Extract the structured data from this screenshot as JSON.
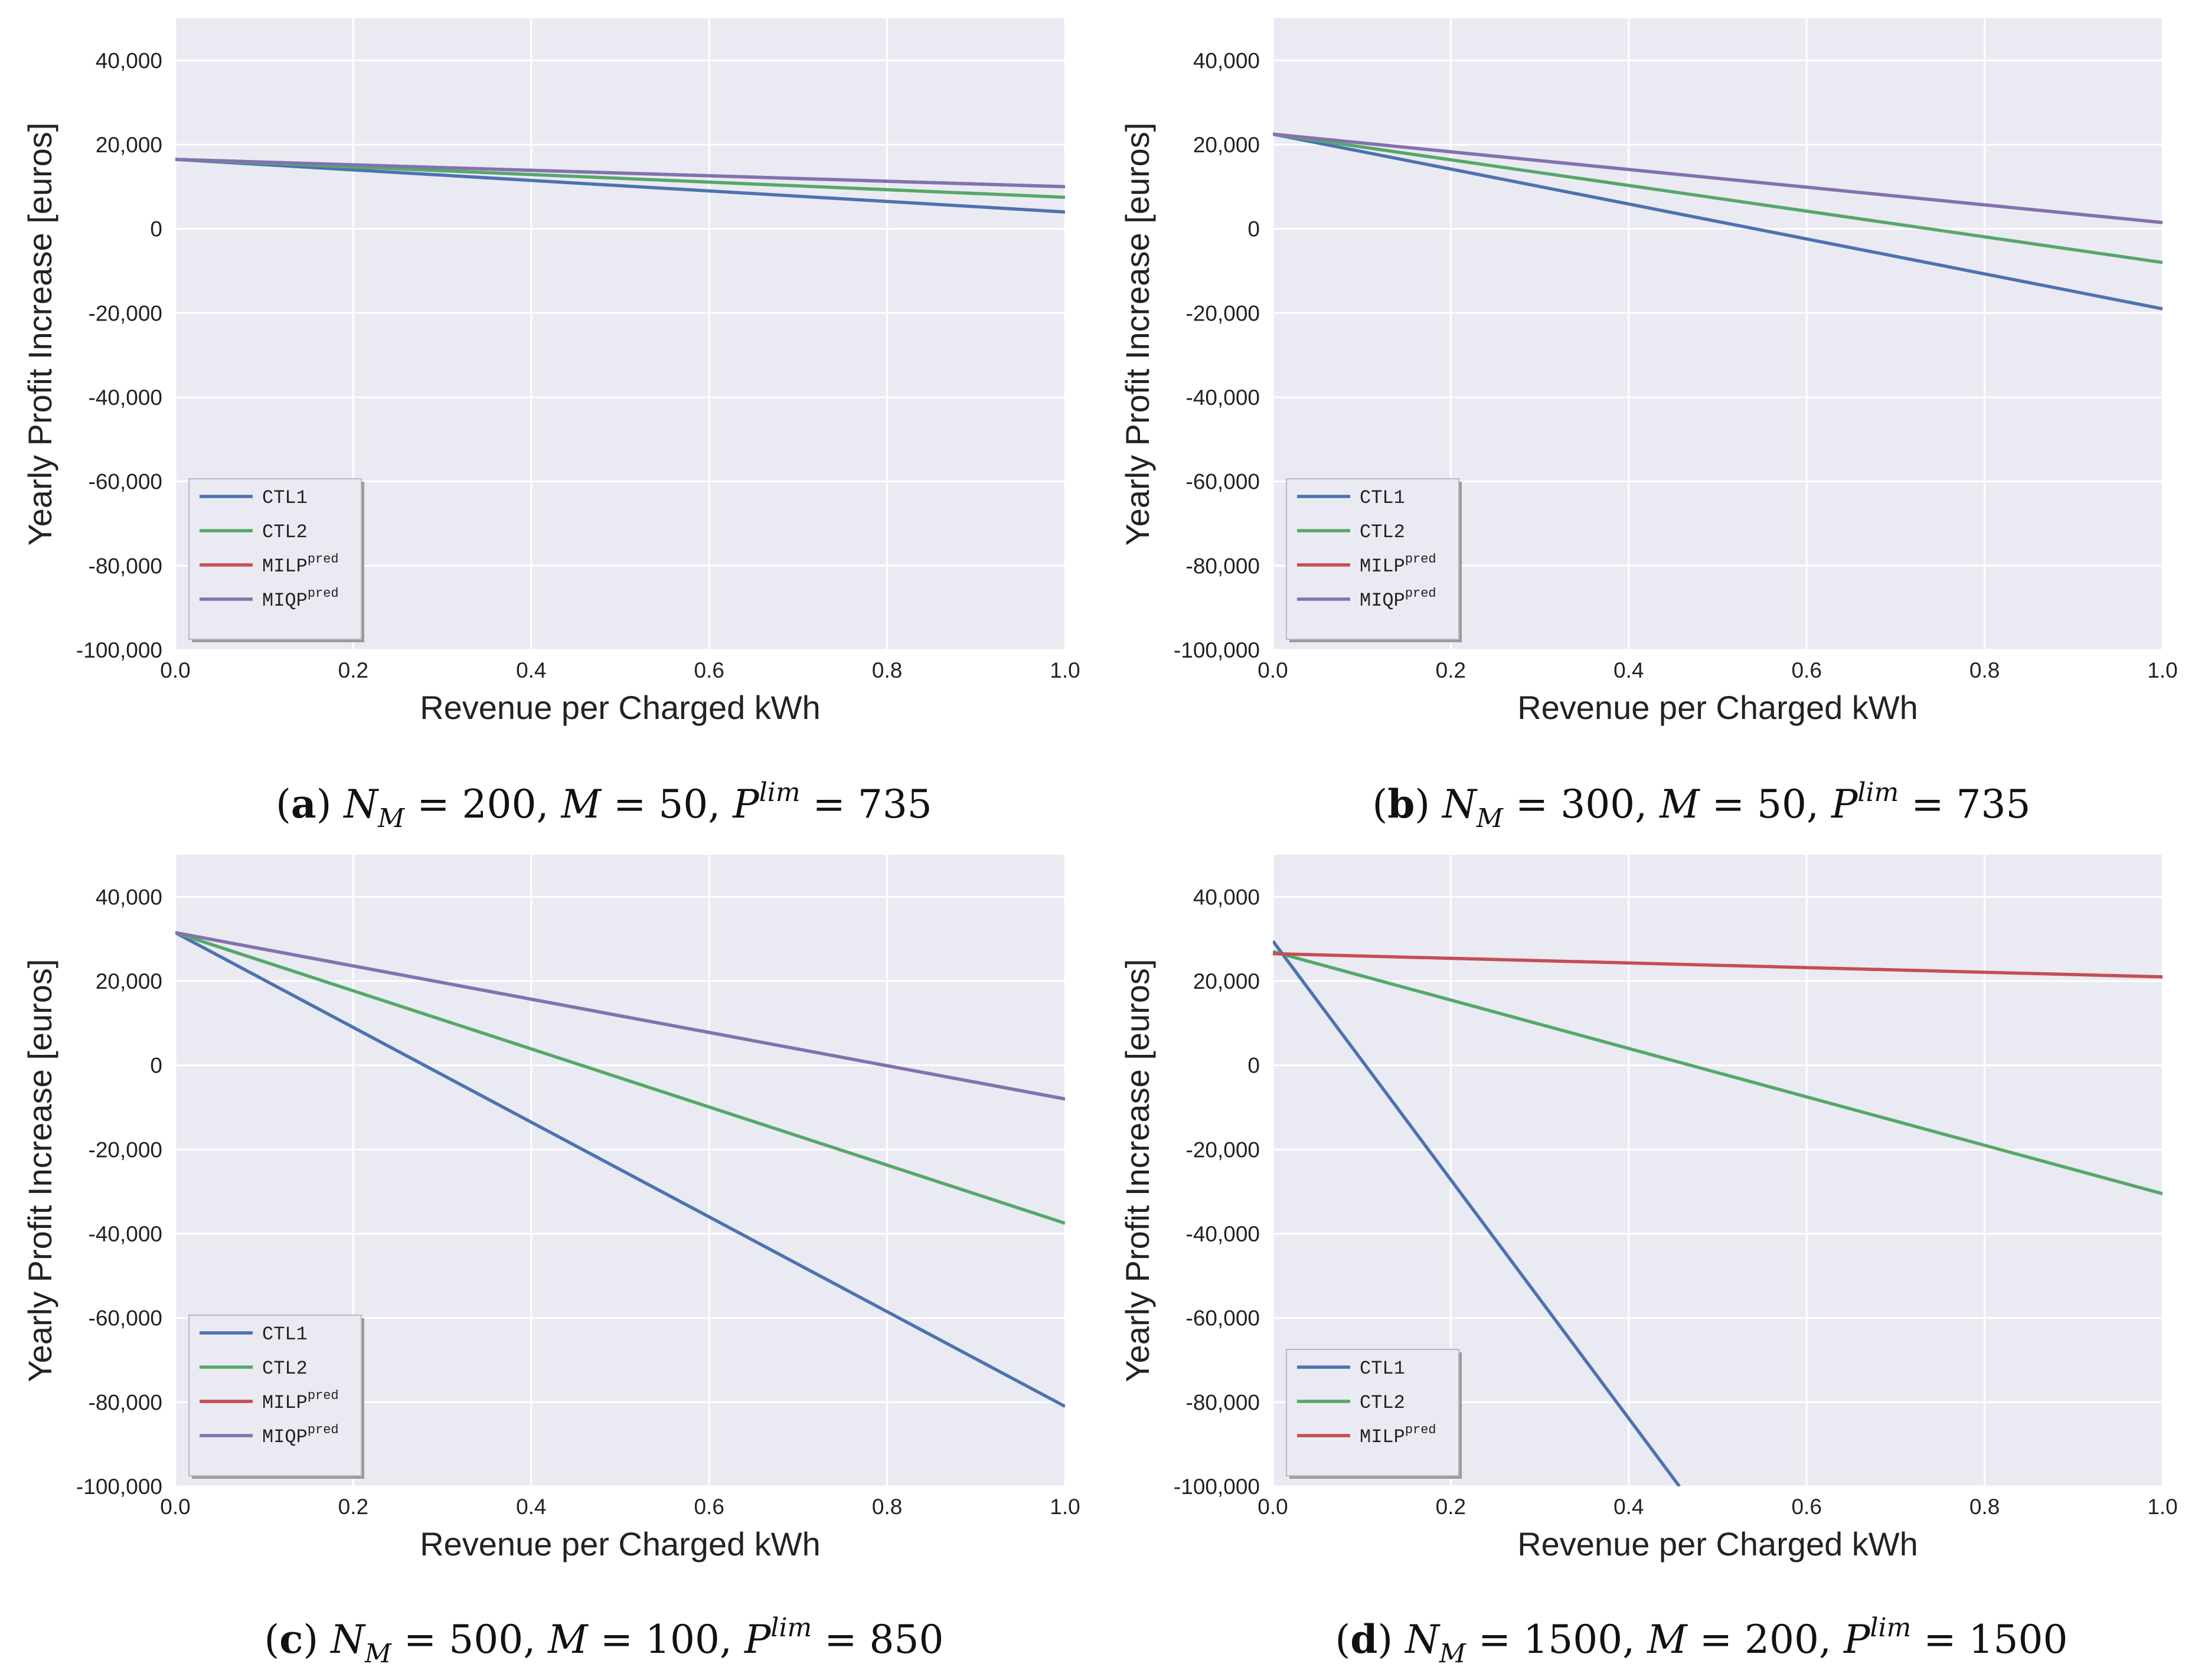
{
  "colors": {
    "plot_bg": "#EAEAF2",
    "grid": "#FFFFFF",
    "CTL1": "#4C72B0",
    "CTL2": "#55A868",
    "MILP": "#C44E52",
    "MIQP": "#8172B2"
  },
  "chart_data": [
    {
      "id": "a",
      "type": "line",
      "xlabel": "Revenue per Charged kWh",
      "ylabel": "Yearly Profit Increase [euros]",
      "xlim": [
        0,
        1
      ],
      "ylim": [
        -100000,
        50000
      ],
      "xticks": [
        "0.0",
        "0.2",
        "0.4",
        "0.6",
        "0.8",
        "1.0"
      ],
      "yticks": [
        "-100,000",
        "-80,000",
        "-60,000",
        "-40,000",
        "-20,000",
        "0",
        "20,000",
        "40,000"
      ],
      "grid": true,
      "legend_position": "lower-left",
      "legend": [
        {
          "key": "CTL1",
          "name": "CTL1",
          "sup": ""
        },
        {
          "key": "CTL2",
          "name": "CTL2",
          "sup": ""
        },
        {
          "key": "MILP",
          "name": "MILP",
          "sup": "pred"
        },
        {
          "key": "MIQP",
          "name": "MIQP",
          "sup": "pred"
        }
      ],
      "series": [
        {
          "key": "CTL1",
          "x": [
            0,
            1
          ],
          "y": [
            16500,
            4000
          ]
        },
        {
          "key": "MILP",
          "x": [
            0,
            1
          ],
          "y": [
            16500,
            10000
          ]
        },
        {
          "key": "CTL2",
          "x": [
            0,
            1
          ],
          "y": [
            16500,
            7500
          ]
        },
        {
          "key": "MIQP",
          "x": [
            0,
            1
          ],
          "y": [
            16500,
            10000
          ]
        }
      ],
      "caption": {
        "label": "a",
        "n": "200",
        "m": "50",
        "p": "735"
      }
    },
    {
      "id": "b",
      "type": "line",
      "xlabel": "Revenue per Charged kWh",
      "ylabel": "Yearly Profit Increase [euros]",
      "xlim": [
        0,
        1
      ],
      "ylim": [
        -100000,
        50000
      ],
      "xticks": [
        "0.0",
        "0.2",
        "0.4",
        "0.6",
        "0.8",
        "1.0"
      ],
      "yticks": [
        "-100,000",
        "-80,000",
        "-60,000",
        "-40,000",
        "-20,000",
        "0",
        "20,000",
        "40,000"
      ],
      "grid": true,
      "legend_position": "lower-left",
      "legend": [
        {
          "key": "CTL1",
          "name": "CTL1",
          "sup": ""
        },
        {
          "key": "CTL2",
          "name": "CTL2",
          "sup": ""
        },
        {
          "key": "MILP",
          "name": "MILP",
          "sup": "pred"
        },
        {
          "key": "MIQP",
          "name": "MIQP",
          "sup": "pred"
        }
      ],
      "series": [
        {
          "key": "CTL1",
          "x": [
            0,
            1
          ],
          "y": [
            22500,
            -19000
          ]
        },
        {
          "key": "MILP",
          "x": [
            0,
            1
          ],
          "y": [
            22500,
            1500
          ]
        },
        {
          "key": "CTL2",
          "x": [
            0,
            1
          ],
          "y": [
            22500,
            -8000
          ]
        },
        {
          "key": "MIQP",
          "x": [
            0,
            1
          ],
          "y": [
            22500,
            1500
          ]
        }
      ],
      "caption": {
        "label": "b",
        "n": "300",
        "m": "50",
        "p": "735"
      }
    },
    {
      "id": "c",
      "type": "line",
      "xlabel": "Revenue per Charged kWh",
      "ylabel": "Yearly Profit Increase [euros]",
      "xlim": [
        0,
        1
      ],
      "ylim": [
        -100000,
        50000
      ],
      "xticks": [
        "0.0",
        "0.2",
        "0.4",
        "0.6",
        "0.8",
        "1.0"
      ],
      "yticks": [
        "-100,000",
        "-80,000",
        "-60,000",
        "-40,000",
        "-20,000",
        "0",
        "20,000",
        "40,000"
      ],
      "grid": true,
      "legend_position": "lower-left",
      "legend": [
        {
          "key": "CTL1",
          "name": "CTL1",
          "sup": ""
        },
        {
          "key": "CTL2",
          "name": "CTL2",
          "sup": ""
        },
        {
          "key": "MILP",
          "name": "MILP",
          "sup": "pred"
        },
        {
          "key": "MIQP",
          "name": "MIQP",
          "sup": "pred"
        }
      ],
      "series": [
        {
          "key": "CTL1",
          "x": [
            0,
            1
          ],
          "y": [
            31500,
            -81000
          ]
        },
        {
          "key": "MILP",
          "x": [
            0,
            1
          ],
          "y": [
            31500,
            -8000
          ]
        },
        {
          "key": "CTL2",
          "x": [
            0,
            1
          ],
          "y": [
            31500,
            -37500
          ]
        },
        {
          "key": "MIQP",
          "x": [
            0,
            1
          ],
          "y": [
            31500,
            -8000
          ]
        }
      ],
      "caption": {
        "label": "c",
        "n": "500",
        "m": "100",
        "p": "850"
      }
    },
    {
      "id": "d",
      "type": "line",
      "xlabel": "Revenue per Charged kWh",
      "ylabel": "Yearly Profit Increase [euros]",
      "xlim": [
        0,
        1
      ],
      "ylim": [
        -100000,
        50000
      ],
      "xticks": [
        "0.0",
        "0.2",
        "0.4",
        "0.6",
        "0.8",
        "1.0"
      ],
      "yticks": [
        "-100,000",
        "-80,000",
        "-60,000",
        "-40,000",
        "-20,000",
        "0",
        "20,000",
        "40,000"
      ],
      "grid": true,
      "legend_position": "lower-left",
      "legend": [
        {
          "key": "CTL1",
          "name": "CTL1",
          "sup": ""
        },
        {
          "key": "CTL2",
          "name": "CTL2",
          "sup": ""
        },
        {
          "key": "MILP",
          "name": "MILP",
          "sup": "pred"
        }
      ],
      "series": [
        {
          "key": "CTL1",
          "x": [
            0,
            0.457
          ],
          "y": [
            29500,
            -100000
          ]
        },
        {
          "key": "CTL2",
          "x": [
            0,
            1
          ],
          "y": [
            27000,
            -30500
          ]
        },
        {
          "key": "MILP",
          "x": [
            0,
            1
          ],
          "y": [
            26500,
            21000
          ]
        }
      ],
      "caption": {
        "label": "d",
        "n": "1500",
        "m": "200",
        "p": "1500"
      }
    }
  ]
}
